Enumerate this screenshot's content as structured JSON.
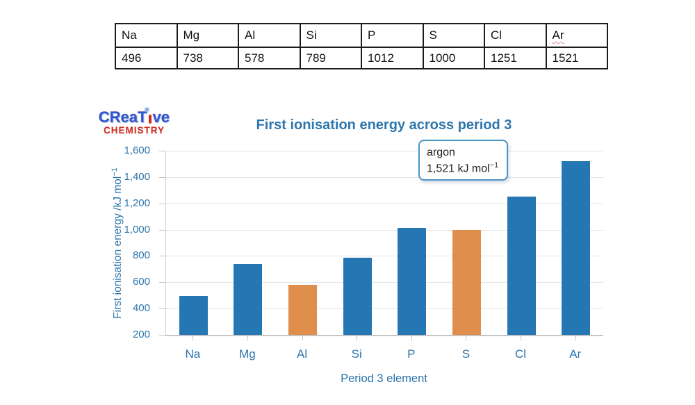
{
  "table": {
    "headers": [
      "Na",
      "Mg",
      "Al",
      "Si",
      "P",
      "S",
      "Cl",
      "Ar"
    ],
    "values": [
      "496",
      "738",
      "578",
      "789",
      "1012",
      "1000",
      "1251",
      "1521"
    ]
  },
  "logo": {
    "line1_part1": "CReaT",
    "line1_part2": "ve",
    "star": "✶",
    "line2": "CHEMISTRY"
  },
  "chart_data": {
    "type": "bar",
    "title": "First ionisation energy across period 3",
    "xlabel": "Period 3 element",
    "ylabel_main": "First ionisation energy /kJ mol",
    "ylabel_sup": "−1",
    "categories": [
      "Na",
      "Mg",
      "Al",
      "Si",
      "P",
      "S",
      "Cl",
      "Ar"
    ],
    "values": [
      496,
      738,
      578,
      789,
      1012,
      1000,
      1251,
      1521
    ],
    "bar_colors": [
      "#2577b4",
      "#2577b4",
      "#df8e4b",
      "#2577b4",
      "#2577b4",
      "#df8e4b",
      "#2577b4",
      "#2577b4"
    ],
    "ylim": [
      200,
      1600
    ],
    "ytick_step": 200,
    "ytick_labels": [
      "200",
      "400",
      "600",
      "800",
      "1,000",
      "1,200",
      "1,400",
      "1,600"
    ],
    "grid": true,
    "legend": "none",
    "accent_color": "#2b74ab"
  },
  "tooltip": {
    "title": "argon",
    "value_main": "1,521 kJ mol",
    "value_sup": "−1"
  }
}
